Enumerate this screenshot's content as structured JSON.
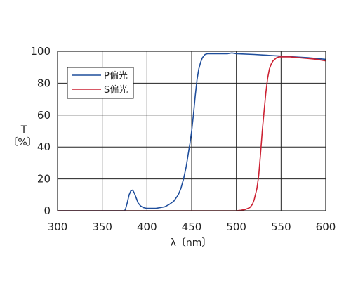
{
  "chart_data": {
    "type": "line",
    "xlabel": "λ〔nm〕",
    "ylabel_top": "T",
    "ylabel_bottom": "〔%〕",
    "xlim": [
      300,
      600
    ],
    "ylim": [
      0,
      100
    ],
    "xticks": [
      300,
      350,
      400,
      450,
      500,
      550,
      600
    ],
    "yticks": [
      0,
      20,
      40,
      60,
      80,
      100
    ],
    "grid": true,
    "legend_position": "top-left",
    "series": [
      {
        "name": "P偏光",
        "color": "#1f4e9c",
        "x": [
          300,
          375,
          376,
          378,
          380,
          382,
          384,
          386,
          388,
          390,
          393,
          396,
          400,
          405,
          410,
          415,
          420,
          425,
          430,
          435,
          438,
          441,
          444,
          446,
          448,
          450,
          452,
          454,
          456,
          458,
          460,
          462,
          465,
          468,
          472,
          480,
          490,
          495,
          500,
          520,
          550,
          580,
          600
        ],
        "y": [
          0,
          0,
          1,
          5,
          10,
          12.5,
          13,
          11,
          8,
          5,
          3,
          2,
          1.5,
          1.5,
          1.5,
          2,
          2.5,
          4,
          6,
          10,
          14,
          20,
          28,
          35,
          42,
          50,
          60,
          72,
          82,
          89,
          93,
          96,
          98,
          98.5,
          98.5,
          98.5,
          98.5,
          99,
          98.5,
          98,
          97,
          96,
          95
        ]
      },
      {
        "name": "S偏光",
        "color": "#cc2233",
        "x": [
          300,
          500,
          505,
          510,
          515,
          518,
          520,
          523,
          525,
          527,
          529,
          531,
          533,
          535,
          537,
          539,
          541,
          543,
          545,
          548,
          552,
          560,
          570,
          580,
          590,
          600
        ],
        "y": [
          0,
          0,
          0.3,
          0.8,
          2,
          4,
          7,
          14,
          22,
          35,
          50,
          62,
          74,
          83,
          89,
          92,
          94,
          95,
          96,
          96.5,
          96.5,
          96.5,
          96,
          95.5,
          95,
          94
        ]
      }
    ]
  }
}
